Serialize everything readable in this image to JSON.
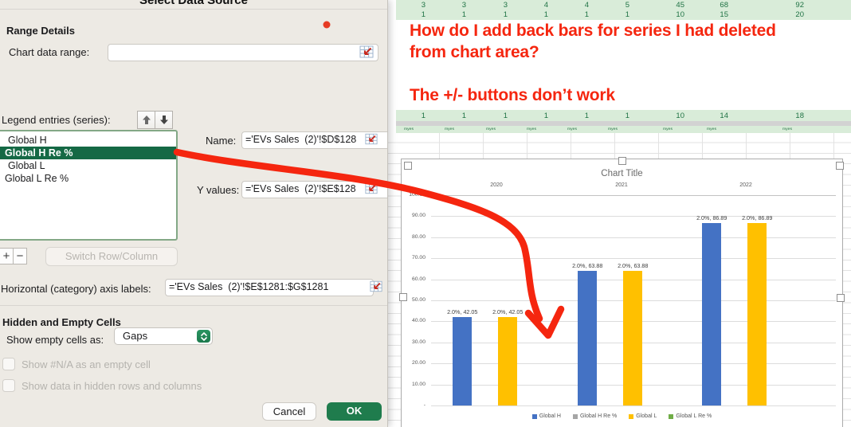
{
  "dialog": {
    "title": "Select Data Source",
    "range_details_heading": "Range Details",
    "chart_data_range_label": "Chart data range:",
    "chart_data_range_value": "",
    "legend_entries_label": "Legend entries (series):",
    "series_list": [
      "Global H",
      "Global H Re %",
      "Global L",
      "Global L Re %"
    ],
    "selected_series": "Global H Re %",
    "name_label": "Name:",
    "name_value": "='EVs Sales  (2)'!$D$128",
    "y_values_label": "Y values:",
    "y_values_value": "='EVs Sales  (2)'!$E$128",
    "add_button": "+",
    "remove_button": "−",
    "switch_button": "Switch Row/Column",
    "axis_labels_label": "Horizontal (category) axis labels:",
    "axis_labels_value": "='EVs Sales  (2)'!$E$1281:$G$1281",
    "hidden_empty_heading": "Hidden and Empty Cells",
    "show_empty_label": "Show empty cells as:",
    "show_empty_value": "Gaps",
    "checkbox_na_label": "Show #N/A as an empty cell",
    "checkbox_hidden_label": "Show data in hidden rows and columns",
    "cancel_button": "Cancel",
    "ok_button": "OK"
  },
  "annotation": {
    "line1": "How do I add back bars for series I had deleted",
    "line2": "from chart area?",
    "line3": "The +/- buttons don’t work",
    "color": "#f5260f"
  },
  "sheet": {
    "row1": [
      "3",
      "3",
      "3",
      "4",
      "4",
      "5",
      "45",
      "68",
      "92"
    ],
    "row2": [
      "1",
      "1",
      "1",
      "1",
      "1",
      "1",
      "10",
      "15",
      "20"
    ],
    "row3": [
      "1",
      "1",
      "1",
      "1",
      "1",
      "1",
      "10",
      "14",
      "18"
    ],
    "tiny_row": [
      "myes",
      "myes",
      "myes",
      "myes",
      "myes",
      "myes",
      "myes",
      "myes",
      "myes"
    ]
  },
  "chart_data": {
    "type": "bar",
    "title": "Chart Title",
    "categories": [
      "2020",
      "2021",
      "2022"
    ],
    "series": [
      {
        "name": "Global H",
        "color": "#4472C4",
        "values": [
          42.05,
          63.88,
          86.89
        ],
        "labels": [
          "2.0%, 42.05",
          "2.0%, 63.88",
          "2.0%, 86.89"
        ]
      },
      {
        "name": "Global H Re %",
        "color": "#A6A6A6",
        "values": [
          null,
          null,
          null
        ],
        "labels": []
      },
      {
        "name": "Global L",
        "color": "#FFC000",
        "values": [
          42.05,
          63.88,
          86.89
        ],
        "labels": [
          "2.0%, 42.05",
          "2.0%, 63.88",
          "2.0%, 86.89"
        ]
      },
      {
        "name": "Global L Re %",
        "color": "#70AD47",
        "values": [
          null,
          null,
          null
        ],
        "labels": []
      }
    ],
    "ylim": [
      0,
      100
    ],
    "yticks": [
      "100.00",
      "90.00",
      "80.00",
      "70.00",
      "60.00",
      "50.00",
      "40.00",
      "30.00",
      "20.00",
      "10.00",
      "-"
    ],
    "grid": true,
    "legend_position": "bottom"
  }
}
